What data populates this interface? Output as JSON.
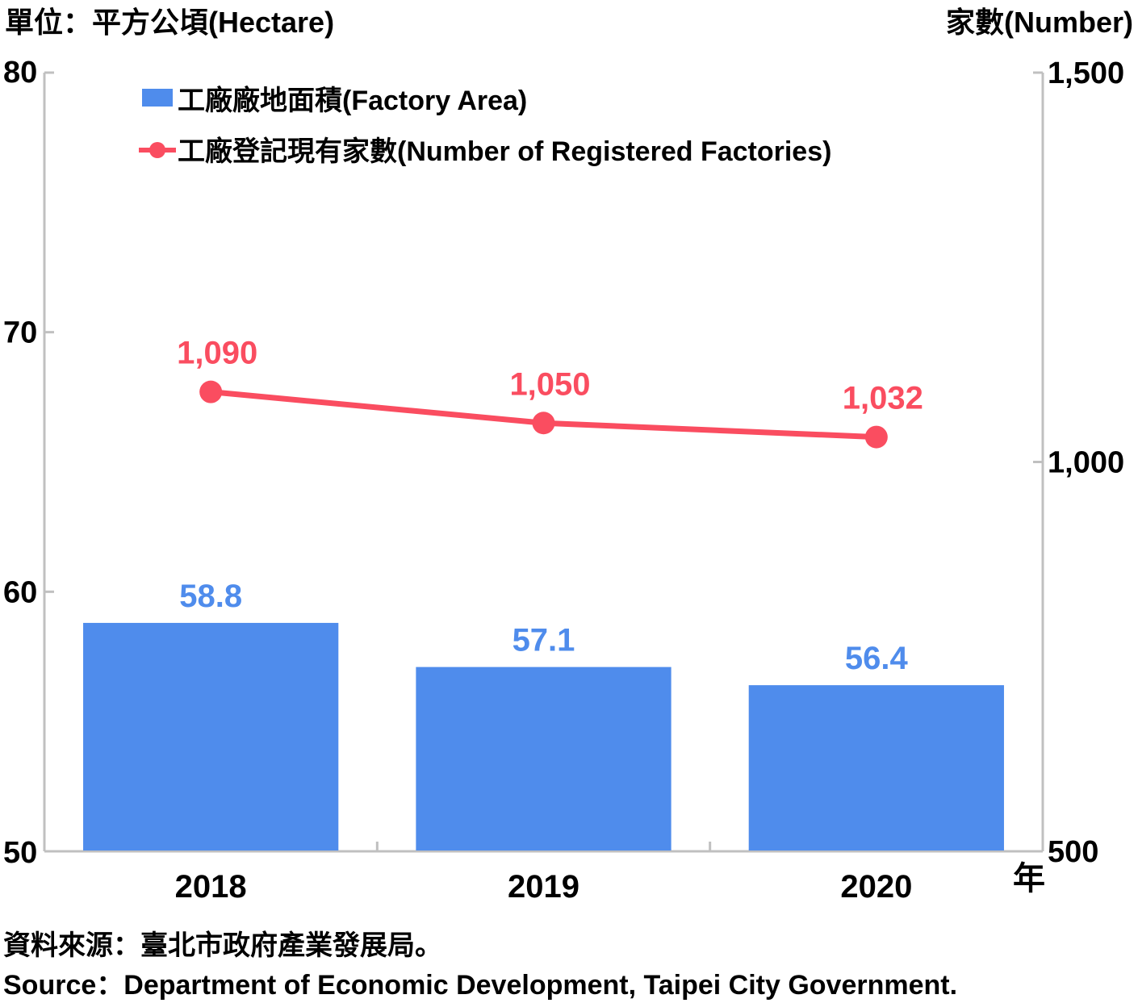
{
  "chart_data": {
    "type": "bar",
    "categories": [
      "2018",
      "2019",
      "2020"
    ],
    "x_unit_label": "年",
    "left_axis": {
      "title": "單位：平方公頃(Hectare)",
      "ylim": [
        50,
        80
      ],
      "ticks": [
        "50",
        "60",
        "70",
        "80"
      ]
    },
    "right_axis": {
      "title": "家數(Number)",
      "ylim": [
        500,
        1500
      ],
      "ticks": [
        "500",
        "1,000",
        "1,500"
      ]
    },
    "series": [
      {
        "name": "工廠廠地面積(Factory Area)",
        "type": "bar",
        "axis": "left",
        "color": "#4f8cec",
        "values": [
          58.8,
          57.1,
          56.4
        ],
        "labels": [
          "58.8",
          "57.1",
          "56.4"
        ]
      },
      {
        "name": "工廠登記現有家數(Number of Registered Factories)",
        "type": "line",
        "axis": "right",
        "color": "#fa4d60",
        "values": [
          1090,
          1050,
          1032
        ],
        "labels": [
          "1,090",
          "1,050",
          "1,032"
        ]
      }
    ],
    "legend_position": "top-left"
  },
  "source": {
    "zh": "資料來源：臺北市政府產業發展局。",
    "en": "Source：Department of Economic Development, Taipei City Government."
  }
}
